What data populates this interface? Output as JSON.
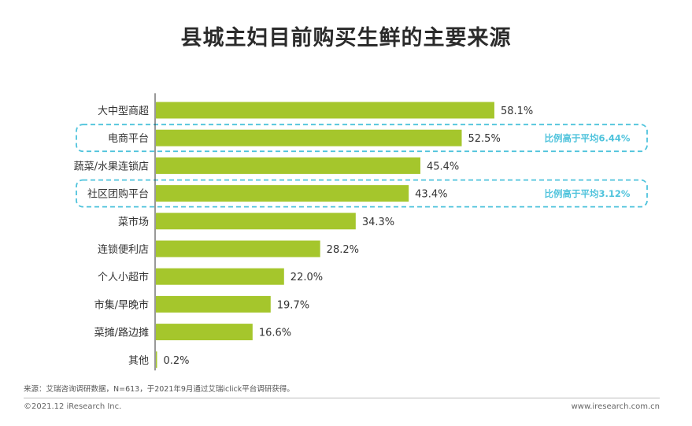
{
  "chart_data": {
    "type": "bar",
    "orientation": "horizontal",
    "title": "县城主妇目前购买生鲜的主要来源",
    "categories": [
      "大中型商超",
      "电商平台",
      "蔬菜/水果连锁店",
      "社区团购平台",
      "菜市场",
      "连锁便利店",
      "个人小超市",
      "市集/早晚市",
      "菜摊/路边摊",
      "其他"
    ],
    "values": [
      58.1,
      52.5,
      45.4,
      43.4,
      34.3,
      28.2,
      22.0,
      19.7,
      16.6,
      0.2
    ],
    "value_labels": [
      "58.1%",
      "52.5%",
      "45.4%",
      "43.4%",
      "34.3%",
      "28.2%",
      "22.0%",
      "19.7%",
      "16.6%",
      "0.2%"
    ],
    "xlim": [
      0,
      100
    ],
    "grid": false,
    "annotations": [
      {
        "category": "电商平台",
        "text": "比例高于平均6.44%"
      },
      {
        "category": "社区团购平台",
        "text": "比例高于平均3.12%"
      }
    ]
  },
  "colors": {
    "bar": "#a5c62c",
    "highlight": "#4fc3dc",
    "axis": "#333333"
  },
  "footer": {
    "source": "来源：艾瑞咨询调研数据，N=613，于2021年9月通过艾瑞iclick平台调研获得。",
    "copyright": "©2021.12 iResearch Inc.",
    "website": "www.iresearch.com.cn"
  }
}
